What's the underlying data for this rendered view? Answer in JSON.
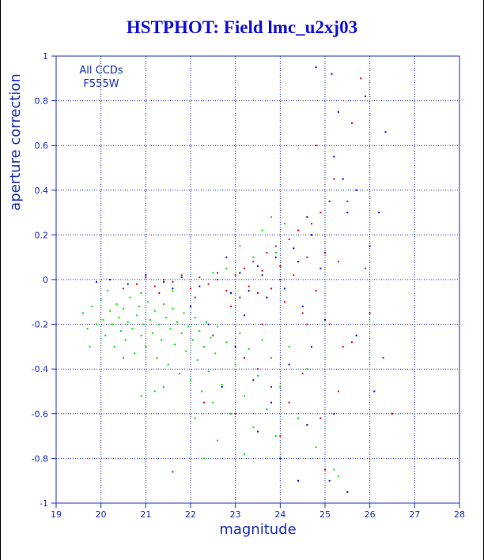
{
  "chart_data": {
    "type": "scatter",
    "title": "HSTPHOT: Field lmc_u2xj03",
    "xlabel": "magnitude",
    "ylabel": "aperture correction",
    "xlim": [
      19,
      28
    ],
    "ylim": [
      -1,
      1
    ],
    "x_ticks": [
      "19",
      "20",
      "21",
      "22",
      "23",
      "24",
      "25",
      "26",
      "27",
      "28"
    ],
    "y_ticks": [
      "1",
      "0.8",
      "0.6",
      "0.4",
      "0.2",
      "0",
      "-0.2",
      "-0.4",
      "-0.6",
      "-0.8",
      "-1"
    ],
    "grid": true,
    "grid_style": "dotted",
    "annotations": [
      "All CCDs",
      "F555W"
    ],
    "series": [
      {
        "color": "#00e000",
        "points": [
          [
            19.6,
            -0.15
          ],
          [
            19.7,
            -0.22
          ],
          [
            19.8,
            -0.12
          ],
          [
            19.9,
            -0.2
          ],
          [
            20.0,
            -0.09
          ],
          [
            20.05,
            -0.18
          ],
          [
            20.1,
            -0.25
          ],
          [
            20.2,
            -0.14
          ],
          [
            20.25,
            -0.2
          ],
          [
            20.3,
            -0.3
          ],
          [
            20.35,
            -0.11
          ],
          [
            20.4,
            -0.17
          ],
          [
            20.45,
            -0.23
          ],
          [
            20.5,
            -0.13
          ],
          [
            20.55,
            -0.27
          ],
          [
            20.6,
            -0.19
          ],
          [
            20.65,
            -0.08
          ],
          [
            20.7,
            -0.22
          ],
          [
            20.75,
            -0.33
          ],
          [
            20.8,
            -0.16
          ],
          [
            20.85,
            -0.12
          ],
          [
            20.9,
            -0.25
          ],
          [
            20.95,
            -0.2
          ],
          [
            21.0,
            -0.3
          ],
          [
            21.05,
            -0.1
          ],
          [
            21.1,
            -0.18
          ],
          [
            21.15,
            -0.24
          ],
          [
            21.2,
            -0.14
          ],
          [
            21.25,
            -0.35
          ],
          [
            21.3,
            -0.2
          ],
          [
            21.35,
            -0.27
          ],
          [
            21.4,
            -0.11
          ],
          [
            21.45,
            -0.17
          ],
          [
            21.5,
            -0.38
          ],
          [
            21.55,
            -0.22
          ],
          [
            21.6,
            -0.13
          ],
          [
            21.65,
            -0.29
          ],
          [
            21.7,
            -0.19
          ],
          [
            21.75,
            -0.42
          ],
          [
            21.8,
            -0.24
          ],
          [
            21.85,
            -0.15
          ],
          [
            21.9,
            -0.32
          ],
          [
            21.95,
            -0.21
          ],
          [
            22.0,
            -0.45
          ],
          [
            22.05,
            -0.27
          ],
          [
            22.1,
            -0.17
          ],
          [
            22.15,
            -0.36
          ],
          [
            22.2,
            -0.23
          ],
          [
            22.25,
            -0.5
          ],
          [
            22.3,
            -0.3
          ],
          [
            22.35,
            -0.19
          ],
          [
            22.4,
            -0.41
          ],
          [
            22.45,
            -0.26
          ],
          [
            22.5,
            -0.55
          ],
          [
            22.55,
            -0.33
          ],
          [
            22.6,
            -0.21
          ],
          [
            22.7,
            -0.47
          ],
          [
            22.8,
            -0.28
          ],
          [
            22.9,
            -0.6
          ],
          [
            23.0,
            -0.38
          ],
          [
            23.1,
            -0.24
          ],
          [
            23.2,
            -0.52
          ],
          [
            23.3,
            -0.31
          ],
          [
            23.4,
            -0.66
          ],
          [
            23.5,
            -0.43
          ],
          [
            23.6,
            -0.27
          ],
          [
            23.7,
            -0.58
          ],
          [
            23.8,
            -0.35
          ],
          [
            23.9,
            -0.7
          ],
          [
            24.0,
            -0.48
          ],
          [
            24.2,
            -0.3
          ],
          [
            24.4,
            -0.62
          ],
          [
            24.6,
            -0.4
          ],
          [
            24.8,
            -0.75
          ],
          [
            25.2,
            -0.85
          ],
          [
            25.3,
            -0.88
          ],
          [
            19.75,
            -0.3
          ],
          [
            20.15,
            -0.05
          ],
          [
            20.5,
            -0.35
          ],
          [
            20.9,
            -0.06
          ],
          [
            21.2,
            -0.5
          ],
          [
            21.6,
            -0.05
          ],
          [
            22.1,
            -0.62
          ],
          [
            22.6,
            -0.72
          ],
          [
            23.2,
            -0.78
          ],
          [
            23.4,
            0.1
          ],
          [
            23.6,
            0.22
          ],
          [
            23.8,
            0.28
          ],
          [
            23.1,
            0.15
          ],
          [
            22.8,
            0.05
          ],
          [
            22.5,
            0.03
          ],
          [
            24.1,
            0.25
          ],
          [
            23.9,
            0.12
          ],
          [
            20.9,
            -0.52
          ],
          [
            21.4,
            -0.48
          ],
          [
            22.3,
            -0.8
          ]
        ]
      },
      {
        "color": "#e00000",
        "points": [
          [
            20.8,
            -0.02
          ],
          [
            21.0,
            0.01
          ],
          [
            21.2,
            -0.03
          ],
          [
            21.4,
            0.0
          ],
          [
            21.6,
            -0.01
          ],
          [
            21.8,
            0.02
          ],
          [
            22.0,
            -0.04
          ],
          [
            22.2,
            0.01
          ],
          [
            22.4,
            -0.02
          ],
          [
            22.6,
            0.03
          ],
          [
            22.8,
            -0.05
          ],
          [
            23.0,
            0.02
          ],
          [
            23.1,
            -0.08
          ],
          [
            23.2,
            0.05
          ],
          [
            23.3,
            -0.03
          ],
          [
            23.4,
            0.08
          ],
          [
            23.5,
            -0.06
          ],
          [
            23.6,
            0.04
          ],
          [
            23.7,
            0.12
          ],
          [
            23.8,
            -0.04
          ],
          [
            23.9,
            0.15
          ],
          [
            24.0,
            0.06
          ],
          [
            24.1,
            -0.1
          ],
          [
            24.2,
            0.18
          ],
          [
            24.3,
            0.02
          ],
          [
            24.4,
            0.22
          ],
          [
            24.5,
            -0.15
          ],
          [
            24.6,
            0.1
          ],
          [
            24.7,
            0.25
          ],
          [
            24.8,
            -0.05
          ],
          [
            24.9,
            0.3
          ],
          [
            25.0,
            0.12
          ],
          [
            25.1,
            -0.2
          ],
          [
            25.2,
            0.45
          ],
          [
            25.3,
            0.08
          ],
          [
            25.4,
            -0.3
          ],
          [
            25.6,
            0.7
          ],
          [
            25.8,
            0.9
          ],
          [
            26.0,
            -0.15
          ],
          [
            26.3,
            -0.35
          ],
          [
            26.5,
            -0.6
          ],
          [
            22.5,
            -0.25
          ],
          [
            23.2,
            -0.35
          ],
          [
            23.5,
            -0.4
          ],
          [
            23.8,
            -0.48
          ],
          [
            24.2,
            -0.55
          ],
          [
            24.5,
            -0.42
          ],
          [
            24.9,
            -0.62
          ],
          [
            25.3,
            -0.5
          ],
          [
            25.6,
            -0.28
          ],
          [
            23.0,
            -0.6
          ],
          [
            24.0,
            -0.7
          ],
          [
            25.0,
            -0.85
          ],
          [
            21.6,
            -0.86
          ],
          [
            22.3,
            -0.55
          ],
          [
            24.6,
            -0.2
          ],
          [
            25.5,
            0.35
          ],
          [
            25.9,
            0.05
          ],
          [
            24.8,
            0.6
          ],
          [
            23.6,
            -0.2
          ],
          [
            22.9,
            -0.12
          ],
          [
            22.1,
            -0.08
          ],
          [
            21.3,
            -0.06
          ],
          [
            20.5,
            -0.04
          ]
        ]
      },
      {
        "color": "#0000e0",
        "points": [
          [
            19.9,
            -0.01
          ],
          [
            20.2,
            0.0
          ],
          [
            20.6,
            -0.02
          ],
          [
            21.0,
            0.02
          ],
          [
            21.4,
            -0.01
          ],
          [
            21.8,
            0.01
          ],
          [
            22.2,
            -0.03
          ],
          [
            22.6,
            0.0
          ],
          [
            22.9,
            -0.06
          ],
          [
            23.1,
            0.03
          ],
          [
            23.3,
            -0.05
          ],
          [
            23.5,
            0.06
          ],
          [
            23.7,
            -0.08
          ],
          [
            23.9,
            0.1
          ],
          [
            24.1,
            -0.04
          ],
          [
            24.3,
            0.14
          ],
          [
            24.5,
            -0.12
          ],
          [
            24.7,
            0.2
          ],
          [
            24.9,
            0.05
          ],
          [
            25.0,
            -0.18
          ],
          [
            25.1,
            0.35
          ],
          [
            25.2,
            0.55
          ],
          [
            25.3,
            0.75
          ],
          [
            25.4,
            0.45
          ],
          [
            25.5,
            0.3
          ],
          [
            25.7,
            -0.25
          ],
          [
            25.9,
            0.82
          ],
          [
            26.0,
            0.15
          ],
          [
            26.2,
            0.3
          ],
          [
            26.35,
            0.66
          ],
          [
            24.8,
            0.95
          ],
          [
            25.15,
            0.92
          ],
          [
            23.0,
            -0.3
          ],
          [
            23.4,
            -0.45
          ],
          [
            23.8,
            -0.55
          ],
          [
            24.2,
            -0.38
          ],
          [
            24.6,
            -0.65
          ],
          [
            24.0,
            -0.8
          ],
          [
            24.4,
            -0.9
          ],
          [
            23.5,
            -0.68
          ],
          [
            22.7,
            -0.48
          ],
          [
            22.4,
            -0.2
          ],
          [
            24.7,
            -0.3
          ],
          [
            25.2,
            -0.6
          ],
          [
            25.5,
            -0.95
          ],
          [
            25.1,
            -0.9
          ],
          [
            22.0,
            -0.12
          ],
          [
            21.6,
            -0.04
          ],
          [
            23.2,
            -0.16
          ],
          [
            24.0,
            0.0
          ],
          [
            24.4,
            0.08
          ],
          [
            23.6,
            0.02
          ],
          [
            22.8,
            0.1
          ],
          [
            24.6,
            0.28
          ],
          [
            25.7,
            0.4
          ],
          [
            26.1,
            -0.5
          ]
        ]
      }
    ]
  }
}
